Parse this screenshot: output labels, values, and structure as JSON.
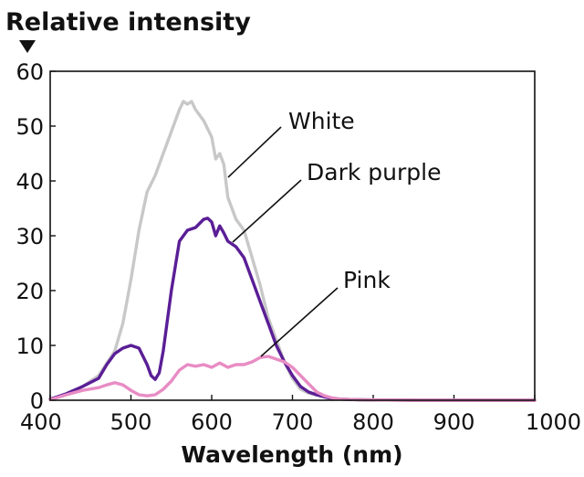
{
  "chart_data": {
    "type": "line",
    "ylabel": "Relative intensity",
    "xlabel": "Wavelength (nm)",
    "xlim": [
      400,
      1000
    ],
    "ylim": [
      0,
      60
    ],
    "xticks": [
      400,
      500,
      600,
      700,
      800,
      900,
      1000
    ],
    "yticks": [
      0,
      10,
      20,
      30,
      40,
      50,
      60
    ],
    "grid": false,
    "series": [
      {
        "name": "White",
        "color": "#c8c8c8",
        "x": [
          400,
          420,
          440,
          460,
          480,
          490,
          500,
          510,
          520,
          530,
          540,
          550,
          560,
          565,
          570,
          575,
          580,
          590,
          600,
          605,
          610,
          615,
          620,
          630,
          640,
          650,
          660,
          670,
          680,
          690,
          700,
          710,
          720,
          730,
          740,
          750,
          760,
          780,
          800,
          850,
          900,
          950,
          1000
        ],
        "y": [
          0.2,
          1,
          2.5,
          4.5,
          9,
          14,
          22,
          31,
          38,
          41,
          45,
          49,
          53,
          54.5,
          54,
          54.5,
          53,
          51,
          48,
          44,
          45,
          43,
          37,
          33,
          31,
          26,
          21,
          15,
          11,
          7,
          4,
          2,
          1.3,
          0.9,
          0.6,
          0.4,
          0.2,
          0.1,
          0.1,
          0,
          0,
          0,
          0
        ]
      },
      {
        "name": "Dark purple",
        "color": "#5a1e96",
        "x": [
          400,
          420,
          440,
          460,
          470,
          480,
          490,
          500,
          510,
          520,
          525,
          530,
          535,
          540,
          550,
          560,
          570,
          580,
          590,
          595,
          600,
          605,
          610,
          615,
          620,
          630,
          640,
          650,
          660,
          670,
          680,
          690,
          700,
          710,
          720,
          730,
          740,
          750,
          760,
          780,
          800,
          850,
          900,
          950,
          1000
        ],
        "y": [
          0.2,
          1.2,
          2.5,
          4,
          6.5,
          8.5,
          9.5,
          10,
          9.5,
          6.5,
          4.5,
          3.8,
          5,
          9,
          20,
          29,
          31,
          31.5,
          33,
          33.2,
          32.5,
          30,
          31.8,
          30.5,
          29,
          28,
          26,
          22,
          18,
          14,
          10,
          7,
          4.5,
          2.5,
          1.5,
          1,
          0.6,
          0.3,
          0.2,
          0.1,
          0.05,
          0,
          0,
          0,
          0
        ]
      },
      {
        "name": "Pink",
        "color": "#e88cc4",
        "x": [
          400,
          420,
          440,
          460,
          470,
          480,
          490,
          500,
          510,
          520,
          530,
          540,
          550,
          560,
          570,
          580,
          590,
          600,
          610,
          620,
          630,
          640,
          650,
          660,
          670,
          680,
          690,
          700,
          710,
          720,
          730,
          740,
          750,
          760,
          780,
          800,
          850,
          900,
          950,
          1000
        ],
        "y": [
          0.1,
          1,
          1.8,
          2.3,
          2.8,
          3.2,
          2.8,
          1.8,
          1,
          0.8,
          1,
          2,
          3.5,
          5.5,
          6.5,
          6.2,
          6.5,
          6,
          6.8,
          6,
          6.5,
          6.5,
          7,
          7.8,
          8,
          7.5,
          7,
          6,
          4.5,
          3,
          1.5,
          0.8,
          0.4,
          0.2,
          0.1,
          0.05,
          0,
          0,
          0,
          0
        ]
      }
    ]
  }
}
